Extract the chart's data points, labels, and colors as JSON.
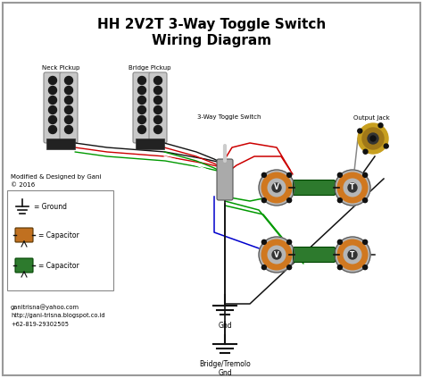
{
  "title_line1": "HH 2V2T 3-Way Toggle Switch",
  "title_line2": "Wiring Diagram",
  "background_color": "#ffffff",
  "border_color": "#999999",
  "neck_pickup_label": "Neck Pickup",
  "bridge_pickup_label": "Bridge Pickup",
  "toggle_label": "3-Way Toggle Switch",
  "output_jack_label": "Output Jack",
  "gnd_label": "Gnd",
  "bridge_gnd_label": "Bridge/Tremolo\nGnd",
  "legend_ground": "= Ground",
  "legend_cap1": "= Capacitor",
  "legend_cap2": "= Capacitor",
  "credit_line1": "Modified & Designed by Gani",
  "credit_line2": "© 2016",
  "contact1": "ganitrisna@yahoo.com",
  "contact2": "http://gani-trisna.blogspot.co.id",
  "contact3": "+62-819-29302505",
  "pickup_body_color": "#c8c8c8",
  "pickup_dot_color": "#1a1a1a",
  "pot_body_color": "#b5b5b5",
  "pot_orange_color": "#d07820",
  "cap_green_color": "#2d7a2d",
  "wire_red": "#cc0000",
  "wire_black": "#111111",
  "wire_green": "#009900",
  "wire_blue": "#0000cc",
  "wire_white": "#cccccc",
  "wire_gray": "#888888",
  "wire_purple": "#800080",
  "output_jack_color": "#c8a020",
  "figw": 4.74,
  "figh": 4.23,
  "dpi": 100
}
